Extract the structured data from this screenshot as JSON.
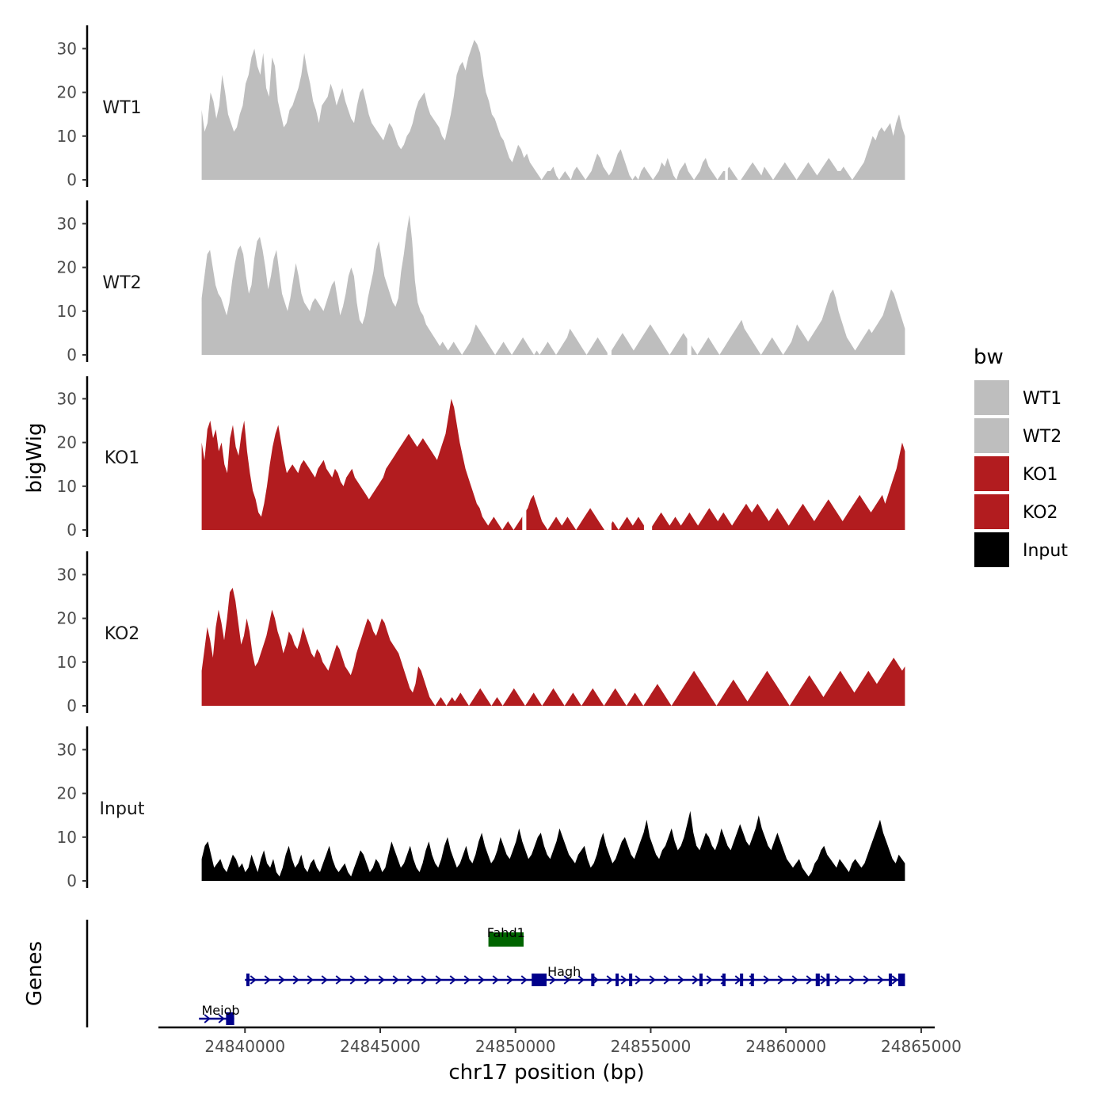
{
  "chart_data": {
    "type": "area",
    "chromosome": "chr17",
    "xlabel": "chr17 position (bp)",
    "ylabel": "bigWig",
    "genes_label": "Genes",
    "xlim": [
      24836800,
      24865500
    ],
    "data_range": [
      24838400,
      24864400
    ],
    "ylim": [
      0,
      35
    ],
    "y_ticks": [
      0,
      10,
      20,
      30
    ],
    "x_ticks": [
      24840000,
      24845000,
      24850000,
      24855000,
      24860000,
      24865000
    ],
    "x_tick_labels": [
      "24840000",
      "24845000",
      "24850000",
      "24855000",
      "24860000",
      "24865000"
    ],
    "legend": {
      "title": "bw",
      "position": "right",
      "entries": [
        {
          "label": "WT1",
          "color": "#bebebe"
        },
        {
          "label": "WT2",
          "color": "#bebebe"
        },
        {
          "label": "KO1",
          "color": "#b21c1f"
        },
        {
          "label": "KO2",
          "color": "#b21c1f"
        },
        {
          "label": "Input",
          "color": "#000000"
        }
      ]
    },
    "series": [
      {
        "name": "WT1",
        "color": "#bebebe",
        "values": [
          16,
          11,
          13,
          20,
          18,
          14,
          17,
          24,
          20,
          15,
          13,
          11,
          12,
          15,
          17,
          22,
          24,
          28,
          30,
          26,
          24,
          29,
          21,
          19,
          28,
          26,
          18,
          15,
          12,
          13,
          16,
          17,
          19,
          21,
          24,
          29,
          25,
          22,
          18,
          16,
          13,
          17,
          18,
          19,
          22,
          20,
          17,
          19,
          21,
          18,
          16,
          14,
          13,
          17,
          20,
          21,
          18,
          15,
          13,
          12,
          11,
          10,
          9,
          11,
          13,
          12,
          10,
          8,
          7,
          8,
          10,
          11,
          13,
          16,
          18,
          19,
          20,
          17,
          15,
          14,
          13,
          12,
          10,
          9,
          12,
          15,
          19,
          24,
          26,
          27,
          25,
          28,
          30,
          32,
          31,
          29,
          24,
          20,
          18,
          15,
          14,
          12,
          10,
          9,
          7,
          5,
          4,
          6,
          8,
          7,
          5,
          6,
          4,
          3,
          2,
          1,
          0,
          1,
          2,
          2,
          3,
          1,
          0,
          1,
          2,
          1,
          0,
          2,
          3,
          2,
          1,
          0,
          1,
          2,
          4,
          6,
          5,
          3,
          2,
          1,
          2,
          4,
          6,
          7,
          5,
          3,
          1,
          0,
          1,
          0,
          2,
          3,
          2,
          1,
          0,
          1,
          2,
          4,
          3,
          5,
          3,
          1,
          0,
          2,
          3,
          4,
          2,
          1,
          0,
          1,
          2,
          4,
          5,
          3,
          2,
          1,
          0,
          1,
          2,
          2,
          3,
          2,
          1,
          0,
          0,
          1,
          2,
          3,
          4,
          3,
          2,
          1,
          3,
          2,
          1,
          0,
          1,
          2,
          3,
          4,
          3,
          2,
          1,
          0,
          1,
          2,
          3,
          4,
          3,
          2,
          1,
          2,
          3,
          4,
          5,
          4,
          3,
          2,
          2,
          3,
          2,
          1,
          0,
          1,
          2,
          3,
          4,
          6,
          8,
          10,
          9,
          11,
          12,
          11,
          12,
          13,
          10,
          13,
          15,
          12,
          10
        ],
        "gaps": [
          24857750,
          24857850
        ]
      },
      {
        "name": "WT2",
        "color": "#bebebe",
        "values": [
          13,
          18,
          23,
          24,
          20,
          16,
          14,
          13,
          11,
          9,
          12,
          17,
          21,
          24,
          25,
          23,
          18,
          14,
          16,
          22,
          26,
          27,
          24,
          20,
          15,
          18,
          22,
          24,
          19,
          14,
          12,
          10,
          13,
          17,
          21,
          18,
          14,
          12,
          11,
          10,
          12,
          13,
          12,
          11,
          10,
          12,
          14,
          16,
          17,
          13,
          9,
          11,
          14,
          18,
          20,
          18,
          12,
          8,
          7,
          9,
          13,
          16,
          19,
          24,
          26,
          22,
          18,
          16,
          14,
          12,
          11,
          13,
          19,
          23,
          28,
          32,
          26,
          17,
          12,
          10,
          9,
          7,
          6,
          5,
          4,
          3,
          2,
          3,
          2,
          1,
          2,
          3,
          2,
          1,
          0,
          1,
          2,
          3,
          5,
          7,
          6,
          5,
          4,
          3,
          2,
          1,
          0,
          1,
          2,
          3,
          2,
          1,
          0,
          1,
          2,
          3,
          4,
          3,
          2,
          1,
          0,
          1,
          0,
          1,
          2,
          3,
          2,
          1,
          0,
          1,
          2,
          3,
          4,
          6,
          5,
          4,
          3,
          2,
          1,
          0,
          1,
          2,
          3,
          4,
          3,
          2,
          1,
          0,
          1,
          2,
          3,
          4,
          5,
          4,
          3,
          2,
          1,
          2,
          3,
          4,
          5,
          6,
          7,
          6,
          5,
          4,
          3,
          2,
          1,
          0,
          1,
          2,
          3,
          4,
          5,
          4,
          3,
          2,
          1,
          0,
          1,
          2,
          3,
          4,
          3,
          2,
          1,
          0,
          1,
          2,
          3,
          4,
          5,
          6,
          7,
          8,
          6,
          5,
          4,
          3,
          2,
          1,
          0,
          1,
          2,
          3,
          4,
          3,
          2,
          1,
          0,
          1,
          2,
          3,
          5,
          7,
          6,
          5,
          4,
          3,
          4,
          5,
          6,
          7,
          8,
          10,
          12,
          14,
          15,
          13,
          10,
          8,
          6,
          4,
          3,
          2,
          1,
          2,
          3,
          4,
          5,
          6,
          5,
          6,
          7,
          8,
          9,
          11,
          13,
          15,
          14,
          12,
          10,
          8,
          6
        ],
        "gaps": [
          24853400,
          24853550,
          24856350,
          24856500
        ]
      },
      {
        "name": "KO1",
        "color": "#b21c1f",
        "values": [
          20,
          16,
          23,
          25,
          21,
          23,
          18,
          20,
          15,
          13,
          21,
          24,
          19,
          17,
          22,
          25,
          18,
          13,
          9,
          7,
          4,
          3,
          6,
          10,
          15,
          19,
          22,
          24,
          20,
          16,
          13,
          14,
          15,
          14,
          13,
          15,
          16,
          15,
          14,
          13,
          12,
          14,
          15,
          16,
          14,
          13,
          12,
          14,
          13,
          11,
          10,
          12,
          13,
          14,
          12,
          11,
          10,
          9,
          8,
          7,
          8,
          9,
          10,
          11,
          12,
          14,
          15,
          16,
          17,
          18,
          19,
          20,
          21,
          22,
          21,
          20,
          19,
          20,
          21,
          20,
          19,
          18,
          17,
          16,
          18,
          20,
          22,
          26,
          30,
          28,
          24,
          20,
          17,
          14,
          12,
          10,
          8,
          6,
          5,
          3,
          2,
          1,
          2,
          3,
          2,
          1,
          0,
          1,
          2,
          1,
          0,
          1,
          2,
          3,
          4,
          5,
          7,
          8,
          6,
          4,
          2,
          1,
          0,
          1,
          2,
          3,
          2,
          1,
          2,
          3,
          2,
          1,
          0,
          1,
          2,
          3,
          4,
          5,
          4,
          3,
          2,
          1,
          0,
          0,
          1,
          2,
          1,
          0,
          1,
          2,
          3,
          2,
          1,
          2,
          3,
          2,
          1,
          0,
          0,
          1,
          2,
          3,
          4,
          3,
          2,
          1,
          2,
          3,
          2,
          1,
          2,
          3,
          4,
          3,
          2,
          1,
          2,
          3,
          4,
          5,
          4,
          3,
          2,
          3,
          4,
          3,
          2,
          1,
          2,
          3,
          4,
          5,
          6,
          5,
          4,
          5,
          6,
          5,
          4,
          3,
          2,
          3,
          4,
          5,
          4,
          3,
          2,
          1,
          2,
          3,
          4,
          5,
          6,
          5,
          4,
          3,
          2,
          3,
          4,
          5,
          6,
          7,
          6,
          5,
          4,
          3,
          2,
          3,
          4,
          5,
          6,
          7,
          8,
          7,
          6,
          5,
          4,
          5,
          6,
          7,
          8,
          6,
          8,
          10,
          12,
          14,
          17,
          20,
          18
        ],
        "gaps": [
          24850250,
          24850400,
          24853400,
          24853550,
          24854750,
          24855050
        ]
      },
      {
        "name": "KO2",
        "color": "#b21c1f",
        "values": [
          8,
          13,
          18,
          15,
          11,
          18,
          22,
          19,
          15,
          20,
          26,
          27,
          24,
          19,
          14,
          16,
          20,
          17,
          12,
          9,
          10,
          12,
          14,
          16,
          19,
          22,
          20,
          17,
          15,
          12,
          14,
          17,
          16,
          14,
          13,
          15,
          18,
          16,
          14,
          12,
          11,
          13,
          12,
          10,
          9,
          8,
          10,
          12,
          14,
          13,
          11,
          9,
          8,
          7,
          9,
          12,
          14,
          16,
          18,
          20,
          19,
          17,
          16,
          18,
          20,
          19,
          17,
          15,
          14,
          13,
          12,
          10,
          8,
          6,
          4,
          3,
          5,
          9,
          8,
          6,
          4,
          2,
          1,
          0,
          1,
          2,
          1,
          0,
          1,
          2,
          1,
          2,
          3,
          2,
          1,
          0,
          1,
          2,
          3,
          4,
          3,
          2,
          1,
          0,
          1,
          2,
          1,
          0,
          1,
          2,
          3,
          4,
          3,
          2,
          1,
          0,
          1,
          2,
          3,
          2,
          1,
          0,
          1,
          2,
          3,
          4,
          3,
          2,
          1,
          0,
          1,
          2,
          3,
          2,
          1,
          0,
          1,
          2,
          3,
          4,
          3,
          2,
          1,
          0,
          1,
          2,
          3,
          4,
          3,
          2,
          1,
          0,
          1,
          2,
          3,
          2,
          1,
          0,
          1,
          2,
          3,
          4,
          5,
          4,
          3,
          2,
          1,
          0,
          1,
          2,
          3,
          4,
          5,
          6,
          7,
          8,
          7,
          6,
          5,
          4,
          3,
          2,
          1,
          0,
          1,
          2,
          3,
          4,
          5,
          6,
          5,
          4,
          3,
          2,
          1,
          2,
          3,
          4,
          5,
          6,
          7,
          8,
          7,
          6,
          5,
          4,
          3,
          2,
          1,
          0,
          1,
          2,
          3,
          4,
          5,
          6,
          7,
          6,
          5,
          4,
          3,
          2,
          3,
          4,
          5,
          6,
          7,
          8,
          7,
          6,
          5,
          4,
          3,
          4,
          5,
          6,
          7,
          8,
          7,
          6,
          5,
          6,
          7,
          8,
          9,
          10,
          11,
          10,
          9,
          8,
          9
        ],
        "gaps": []
      },
      {
        "name": "Input",
        "color": "#000000",
        "values": [
          5,
          8,
          9,
          6,
          3,
          4,
          5,
          3,
          2,
          4,
          6,
          5,
          3,
          4,
          2,
          3,
          6,
          4,
          2,
          5,
          7,
          4,
          3,
          5,
          2,
          1,
          3,
          6,
          8,
          5,
          3,
          4,
          6,
          3,
          2,
          4,
          5,
          3,
          2,
          4,
          6,
          8,
          5,
          3,
          2,
          3,
          4,
          2,
          1,
          3,
          5,
          7,
          6,
          4,
          2,
          3,
          5,
          4,
          2,
          3,
          6,
          9,
          7,
          5,
          3,
          4,
          6,
          8,
          5,
          3,
          2,
          4,
          7,
          9,
          6,
          4,
          3,
          5,
          8,
          10,
          7,
          5,
          3,
          4,
          6,
          8,
          5,
          4,
          6,
          9,
          11,
          8,
          6,
          4,
          5,
          7,
          10,
          8,
          6,
          5,
          7,
          9,
          12,
          9,
          7,
          5,
          6,
          8,
          10,
          11,
          8,
          6,
          5,
          7,
          9,
          12,
          10,
          8,
          6,
          5,
          4,
          6,
          7,
          8,
          5,
          3,
          4,
          6,
          9,
          11,
          8,
          6,
          4,
          5,
          7,
          9,
          10,
          8,
          6,
          5,
          7,
          9,
          11,
          14,
          10,
          8,
          6,
          5,
          7,
          8,
          10,
          12,
          9,
          7,
          8,
          10,
          13,
          16,
          11,
          8,
          7,
          9,
          11,
          10,
          8,
          7,
          9,
          12,
          10,
          8,
          7,
          9,
          11,
          13,
          11,
          9,
          8,
          10,
          12,
          15,
          12,
          10,
          8,
          7,
          9,
          11,
          9,
          7,
          5,
          4,
          3,
          4,
          5,
          3,
          2,
          1,
          2,
          4,
          5,
          7,
          8,
          6,
          5,
          4,
          3,
          5,
          4,
          3,
          2,
          4,
          5,
          4,
          3,
          4,
          6,
          8,
          10,
          12,
          14,
          11,
          9,
          7,
          5,
          4,
          6,
          5,
          4
        ],
        "gaps": []
      }
    ],
    "genes": [
      {
        "name": "Fahd1",
        "color": "#006400",
        "start": 24849000,
        "end": 24850300,
        "strand": "+",
        "row": 1,
        "exons": [
          [
            24849000,
            24850300
          ]
        ]
      },
      {
        "name": "Hagh",
        "color": "#00008b",
        "start": 24840000,
        "end": 24864400,
        "strand": "+",
        "row": 2,
        "exons": [
          [
            24840050,
            24840150
          ],
          [
            24850600,
            24851150
          ],
          [
            24852800,
            24852900
          ],
          [
            24853700,
            24853780
          ],
          [
            24854200,
            24854250
          ],
          [
            24856800,
            24856880
          ],
          [
            24857650,
            24857750
          ],
          [
            24858300,
            24858380
          ],
          [
            24858700,
            24858750
          ],
          [
            24861100,
            24861250
          ],
          [
            24861500,
            24861580
          ],
          [
            24863800,
            24863860
          ],
          [
            24864150,
            24864400
          ]
        ]
      },
      {
        "name": "Meiob",
        "color": "#00008b",
        "start": 24838300,
        "end": 24839600,
        "strand": "+",
        "row": 3,
        "exons": [
          [
            24839300,
            24839600
          ]
        ]
      }
    ]
  }
}
